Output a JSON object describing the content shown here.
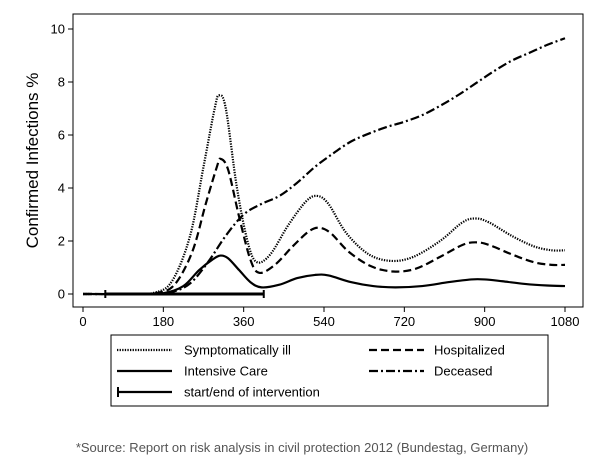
{
  "chart_data": {
    "type": "line",
    "xlim": [
      0,
      1080
    ],
    "ylim": [
      0,
      10
    ],
    "x_ticks": [
      0,
      180,
      360,
      540,
      720,
      900,
      1080
    ],
    "y_ticks": [
      0,
      2,
      4,
      6,
      8,
      10
    ],
    "ylabel": "Confirmed Infections %",
    "xlabel": "",
    "grid": false,
    "legend_position": "bottom",
    "series": [
      {
        "name": "Symptomatically ill",
        "style": "dotted",
        "points": [
          [
            0,
            0
          ],
          [
            100,
            0
          ],
          [
            160,
            0.05
          ],
          [
            200,
            0.5
          ],
          [
            240,
            2.2
          ],
          [
            270,
            4.8
          ],
          [
            295,
            7.0
          ],
          [
            305,
            7.5
          ],
          [
            320,
            7.0
          ],
          [
            345,
            4.0
          ],
          [
            370,
            1.9
          ],
          [
            390,
            1.2
          ],
          [
            420,
            1.5
          ],
          [
            460,
            2.6
          ],
          [
            500,
            3.5
          ],
          [
            525,
            3.7
          ],
          [
            550,
            3.4
          ],
          [
            590,
            2.3
          ],
          [
            640,
            1.5
          ],
          [
            690,
            1.25
          ],
          [
            740,
            1.4
          ],
          [
            800,
            2.0
          ],
          [
            850,
            2.7
          ],
          [
            880,
            2.85
          ],
          [
            910,
            2.7
          ],
          [
            960,
            2.2
          ],
          [
            1010,
            1.8
          ],
          [
            1050,
            1.65
          ],
          [
            1080,
            1.65
          ]
        ]
      },
      {
        "name": "Hospitalized",
        "style": "dashed",
        "points": [
          [
            0,
            0
          ],
          [
            110,
            0
          ],
          [
            165,
            0.04
          ],
          [
            205,
            0.35
          ],
          [
            245,
            1.6
          ],
          [
            275,
            3.4
          ],
          [
            300,
            4.8
          ],
          [
            308,
            5.1
          ],
          [
            325,
            4.7
          ],
          [
            350,
            2.9
          ],
          [
            375,
            1.3
          ],
          [
            395,
            0.8
          ],
          [
            430,
            1.1
          ],
          [
            470,
            1.8
          ],
          [
            505,
            2.35
          ],
          [
            528,
            2.5
          ],
          [
            555,
            2.3
          ],
          [
            595,
            1.6
          ],
          [
            645,
            1.05
          ],
          [
            695,
            0.85
          ],
          [
            745,
            0.95
          ],
          [
            800,
            1.4
          ],
          [
            850,
            1.85
          ],
          [
            880,
            1.95
          ],
          [
            910,
            1.85
          ],
          [
            960,
            1.5
          ],
          [
            1010,
            1.2
          ],
          [
            1050,
            1.1
          ],
          [
            1080,
            1.1
          ]
        ]
      },
      {
        "name": "Intensive Care",
        "style": "solid",
        "points": [
          [
            0,
            0
          ],
          [
            120,
            0
          ],
          [
            180,
            0.03
          ],
          [
            225,
            0.3
          ],
          [
            260,
            0.9
          ],
          [
            290,
            1.3
          ],
          [
            308,
            1.45
          ],
          [
            325,
            1.35
          ],
          [
            350,
            0.9
          ],
          [
            375,
            0.45
          ],
          [
            400,
            0.25
          ],
          [
            440,
            0.35
          ],
          [
            480,
            0.6
          ],
          [
            520,
            0.72
          ],
          [
            550,
            0.7
          ],
          [
            600,
            0.45
          ],
          [
            650,
            0.3
          ],
          [
            700,
            0.25
          ],
          [
            760,
            0.3
          ],
          [
            820,
            0.45
          ],
          [
            870,
            0.55
          ],
          [
            900,
            0.55
          ],
          [
            940,
            0.48
          ],
          [
            990,
            0.38
          ],
          [
            1040,
            0.32
          ],
          [
            1080,
            0.3
          ]
        ]
      },
      {
        "name": "Deceased",
        "style": "dashdot",
        "points": [
          [
            0,
            0
          ],
          [
            150,
            0
          ],
          [
            200,
            0.08
          ],
          [
            240,
            0.4
          ],
          [
            280,
            1.2
          ],
          [
            320,
            2.2
          ],
          [
            360,
            3.0
          ],
          [
            400,
            3.4
          ],
          [
            440,
            3.7
          ],
          [
            480,
            4.2
          ],
          [
            520,
            4.8
          ],
          [
            560,
            5.3
          ],
          [
            600,
            5.75
          ],
          [
            640,
            6.05
          ],
          [
            680,
            6.3
          ],
          [
            720,
            6.5
          ],
          [
            760,
            6.75
          ],
          [
            800,
            7.1
          ],
          [
            840,
            7.5
          ],
          [
            880,
            7.95
          ],
          [
            920,
            8.4
          ],
          [
            960,
            8.8
          ],
          [
            1000,
            9.1
          ],
          [
            1040,
            9.4
          ],
          [
            1080,
            9.65
          ]
        ]
      }
    ],
    "intervention": {
      "name": "start/end of intervention",
      "start": 50,
      "end": 405,
      "y": 0
    }
  },
  "legend": {
    "items": [
      "Symptomatically ill",
      "Hospitalized",
      "Intensive Care",
      "Deceased",
      "start/end of intervention"
    ]
  },
  "source_note": "*Source:  Report on risk analysis in civil protection 2012 (Bundestag, Germany)"
}
